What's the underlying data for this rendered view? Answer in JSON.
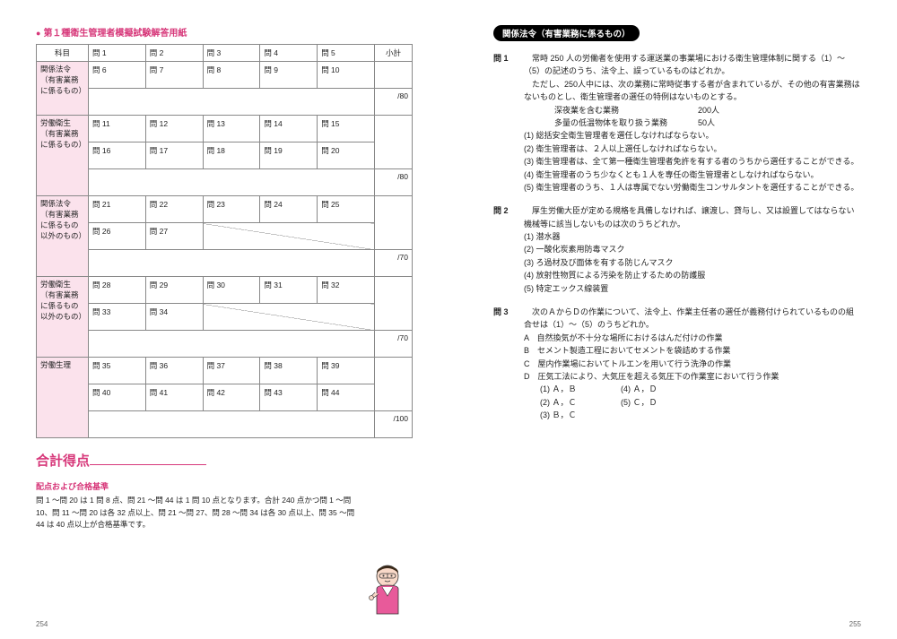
{
  "left": {
    "title": "第１種衛生管理者模擬試験解答用紙",
    "headers": {
      "subject": "科目",
      "subtotal": "小計"
    },
    "sections": [
      {
        "subject": "関係法令（有害業務に係るもの）",
        "rows": [
          [
            "問 1",
            "問 2",
            "問 3",
            "問 4",
            "問 5"
          ],
          [
            "問 6",
            "問 7",
            "問 8",
            "問 9",
            "問 10"
          ]
        ],
        "subtotal": "/80"
      },
      {
        "subject": "労働衛生（有害業務に係るもの）",
        "rows": [
          [
            "問 11",
            "問 12",
            "問 13",
            "問 14",
            "問 15"
          ],
          [
            "問 16",
            "問 17",
            "問 18",
            "問 19",
            "問 20"
          ]
        ],
        "subtotal": "/80"
      },
      {
        "subject": "関係法令（有害業務に係るもの以外のもの）",
        "rows": [
          [
            "問 21",
            "問 22",
            "問 23",
            "問 24",
            "問 25"
          ],
          [
            "問 26",
            "問 27",
            "",
            "",
            ""
          ]
        ],
        "subtotal": "/70",
        "diag_from": 2
      },
      {
        "subject": "労働衛生（有害業務に係るもの以外のもの）",
        "rows": [
          [
            "問 28",
            "問 29",
            "問 30",
            "問 31",
            "問 32"
          ],
          [
            "問 33",
            "問 34",
            "",
            "",
            ""
          ]
        ],
        "subtotal": "/70",
        "diag_from": 2
      },
      {
        "subject": "労働生理",
        "rows": [
          [
            "問 35",
            "問 36",
            "問 37",
            "問 38",
            "問 39"
          ],
          [
            "問 40",
            "問 41",
            "問 42",
            "問 43",
            "問 44"
          ]
        ],
        "subtotal": "/100"
      }
    ],
    "total_label": "合計得点",
    "criteria_title": "配点および合格基準",
    "criteria_text": "問 1 〜問 20 は 1 問 8 点、問 21 〜問 44 は 1 問 10 点となります。合計 240 点かつ問 1 〜問 10、問 11 〜問 20 は各 32 点以上、問 21 〜問 27、問 28 〜問 34 は各 30 点以上、問 35 〜問 44 は 40 点以上が合格基準です。",
    "page_num": "254"
  },
  "right": {
    "section_title": "関係法令（有害業務に係るもの）",
    "q1": {
      "label": "問 1",
      "stem1": "常時 250 人の労働者を使用する運送業の事業場における衛生管理体制に関する（1）〜（5）の記述のうち、法令上、誤っているものはどれか。",
      "stem2": "ただし、250人中には、次の業務に常時従事する者が含まれているが、その他の有害業務はないものとし、衛生管理者の選任の特例はないものとする。",
      "cond1a": "深夜業を含む業務",
      "cond1b": "200人",
      "cond2a": "多量の低温物体を取り扱う業務",
      "cond2b": "50人",
      "opts": [
        "(1) 総括安全衛生管理者を選任しなければならない。",
        "(2) 衛生管理者は、２人以上選任しなければならない。",
        "(3) 衛生管理者は、全て第一種衛生管理者免許を有する者のうちから選任することができる。",
        "(4) 衛生管理者のうち少なくとも１人を専任の衛生管理者としなければならない。",
        "(5) 衛生管理者のうち、１人は専属でない労働衛生コンサルタントを選任することができる。"
      ]
    },
    "q2": {
      "label": "問 2",
      "stem": "厚生労働大臣が定める規格を具備しなければ、譲渡し、貸与し、又は設置してはならない機械等に該当しないものは次のうちどれか。",
      "opts": [
        "(1) 潜水器",
        "(2) 一酸化炭素用防毒マスク",
        "(3) ろ過材及び面体を有する防じんマスク",
        "(4) 放射性物質による汚染を防止するための防護服",
        "(5) 特定エックス線装置"
      ]
    },
    "q3": {
      "label": "問 3",
      "stem": "次のＡからＤの作業について、法令上、作業主任者の選任が義務付けられているものの組合せは（1）〜（5）のうちどれか。",
      "items": [
        "A　自然換気が不十分な場所におけるはんだ付けの作業",
        "B　セメント製造工程においてセメントを袋詰めする作業",
        "C　屋内作業場においてトルエンを用いて行う洗浄の作業",
        "D　圧気工法により、大気圧を超える気圧下の作業室において行う作業"
      ],
      "pairs": [
        [
          "(1) Ａ，Ｂ",
          "(4) Ａ，Ｄ"
        ],
        [
          "(2) Ａ，Ｃ",
          "(5) Ｃ，Ｄ"
        ],
        [
          "(3) Ｂ，Ｃ",
          ""
        ]
      ]
    },
    "page_num": "255"
  },
  "colors": {
    "accent": "#d7387a",
    "pink_bg": "#fbe2ec"
  }
}
